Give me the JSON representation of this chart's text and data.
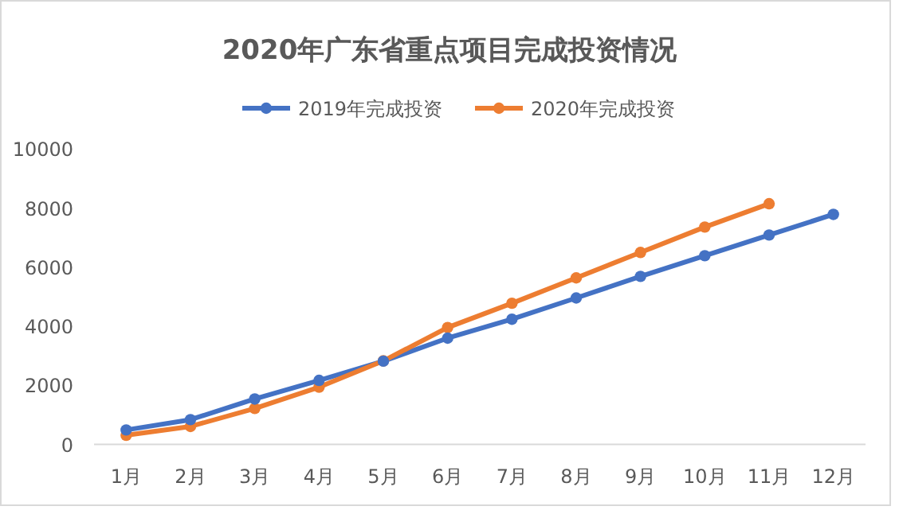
{
  "chart_data": {
    "type": "line",
    "title": "2020年广东省重点项目完成投资情况",
    "categories": [
      "1月",
      "2月",
      "3月",
      "4月",
      "5月",
      "6月",
      "7月",
      "8月",
      "9月",
      "10月",
      "11月",
      "12月"
    ],
    "series": [
      {
        "name": "2019年完成投资",
        "color": "#4472c4",
        "values": [
          490,
          840,
          1540,
          2170,
          2820,
          3600,
          4240,
          4960,
          5690,
          6390,
          7090,
          7790
        ]
      },
      {
        "name": "2020年完成投资",
        "color": "#ed7d31",
        "values": [
          310,
          610,
          1220,
          1940,
          2830,
          3960,
          4780,
          5640,
          6500,
          7360,
          8150,
          null
        ]
      }
    ],
    "ylim": [
      0,
      10000
    ],
    "yticks": [
      0,
      2000,
      4000,
      6000,
      8000,
      10000
    ],
    "grid": false,
    "legend": "top",
    "marker": "circle",
    "line_style": "solid"
  }
}
